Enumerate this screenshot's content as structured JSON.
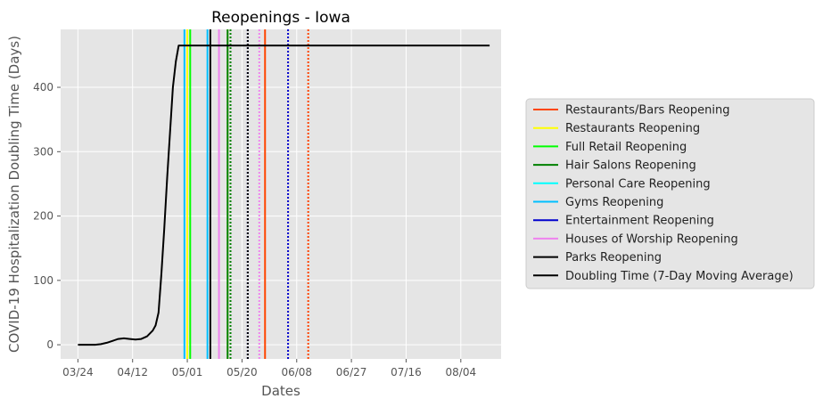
{
  "chart_data": {
    "type": "line",
    "title": "Reopenings - Iowa",
    "xlabel": "Dates",
    "ylabel": "COVID-19 Hospitalization Doubling Time (Days)",
    "x_start": "2020-03-24",
    "x_ticks": [
      "03/24",
      "04/12",
      "05/01",
      "05/20",
      "06/08",
      "06/27",
      "07/16",
      "08/04"
    ],
    "y_ticks": [
      0,
      100,
      200,
      300,
      400
    ],
    "xlim": [
      "2020-03-18",
      "2020-08-18"
    ],
    "ylim": [
      -22,
      490
    ],
    "grid": true,
    "background": "#e5e5e5",
    "legend_position": "right",
    "series": [
      {
        "name": "Doubling Time (7-Day Moving Average)",
        "color": "#000000",
        "points": [
          [
            "2020-03-24",
            0
          ],
          [
            "2020-03-30",
            0
          ],
          [
            "2020-04-01",
            1
          ],
          [
            "2020-04-03",
            3
          ],
          [
            "2020-04-05",
            6
          ],
          [
            "2020-04-07",
            9
          ],
          [
            "2020-04-09",
            10
          ],
          [
            "2020-04-11",
            9
          ],
          [
            "2020-04-13",
            8
          ],
          [
            "2020-04-15",
            9
          ],
          [
            "2020-04-17",
            13
          ],
          [
            "2020-04-19",
            22
          ],
          [
            "2020-04-20",
            30
          ],
          [
            "2020-04-21",
            50
          ],
          [
            "2020-04-22",
            110
          ],
          [
            "2020-04-23",
            180
          ],
          [
            "2020-04-24",
            260
          ],
          [
            "2020-04-25",
            330
          ],
          [
            "2020-04-26",
            400
          ],
          [
            "2020-04-27",
            440
          ],
          [
            "2020-04-28",
            465
          ],
          [
            "2020-08-14",
            465
          ]
        ]
      }
    ],
    "reopenings": [
      {
        "label": "Restaurants/Bars Reopening",
        "color": "#ff4500",
        "dates": [
          "2020-05-28"
        ],
        "planned": [
          "2020-06-12"
        ]
      },
      {
        "label": "Restaurants Reopening",
        "color": "#ffff00",
        "dates": [
          "2020-05-01"
        ],
        "planned": [
          "2020-05-15"
        ]
      },
      {
        "label": "Full Retail Reopening",
        "color": "#00ff00",
        "dates": [
          "2020-05-02"
        ],
        "planned": [
          "2020-05-16"
        ]
      },
      {
        "label": "Hair Salons Reopening",
        "color": "#008000",
        "dates": [
          "2020-05-15"
        ],
        "planned": [
          "2020-05-16"
        ]
      },
      {
        "label": "Personal Care Reopening",
        "color": "#00ffff",
        "dates": [],
        "planned": []
      },
      {
        "label": "Gyms Reopening",
        "color": "#00bfff",
        "dates": [
          "2020-04-30",
          "2020-05-08"
        ],
        "planned": []
      },
      {
        "label": "Entertainment Reopening",
        "color": "#0000cd",
        "dates": [],
        "planned": [
          "2020-05-22",
          "2020-06-05"
        ]
      },
      {
        "label": "Houses of Worship Reopening",
        "color": "#ee82ee",
        "dates": [
          "2020-05-12"
        ],
        "planned": [
          "2020-05-26"
        ]
      },
      {
        "label": "Parks Reopening",
        "color": "#000000",
        "dates": [
          "2020-05-09"
        ],
        "planned": [
          "2020-05-22"
        ]
      }
    ],
    "legend": [
      {
        "label": "Restaurants/Bars Reopening",
        "color": "#ff4500"
      },
      {
        "label": "Restaurants Reopening",
        "color": "#ffff00"
      },
      {
        "label": "Full Retail Reopening",
        "color": "#00ff00"
      },
      {
        "label": "Hair Salons Reopening",
        "color": "#008000"
      },
      {
        "label": "Personal Care Reopening",
        "color": "#00ffff"
      },
      {
        "label": "Gyms Reopening",
        "color": "#00bfff"
      },
      {
        "label": "Entertainment Reopening",
        "color": "#0000cd"
      },
      {
        "label": "Houses of Worship Reopening",
        "color": "#ee82ee"
      },
      {
        "label": "Parks Reopening",
        "color": "#000000"
      },
      {
        "label": "Doubling Time (7-Day Moving Average)",
        "color": "#000000"
      }
    ]
  }
}
